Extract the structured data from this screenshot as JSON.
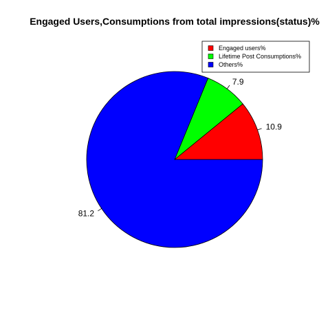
{
  "chart_data": {
    "type": "pie",
    "title": "Engaged Users,Consumptions from total impressions(status)%",
    "slices": [
      {
        "name": "Engaged users%",
        "value": 10.9,
        "label": "10.9",
        "color": "#FF0000"
      },
      {
        "name": "Lifetime Post Consumptions%",
        "value": 7.9,
        "label": "7.9",
        "color": "#00FF00"
      },
      {
        "name": "Others%",
        "value": 81.2,
        "label": "81.2",
        "color": "#0000FF"
      }
    ],
    "start_angle_deg": 0,
    "direction": "counterclockwise",
    "legend_position": "top-right"
  }
}
